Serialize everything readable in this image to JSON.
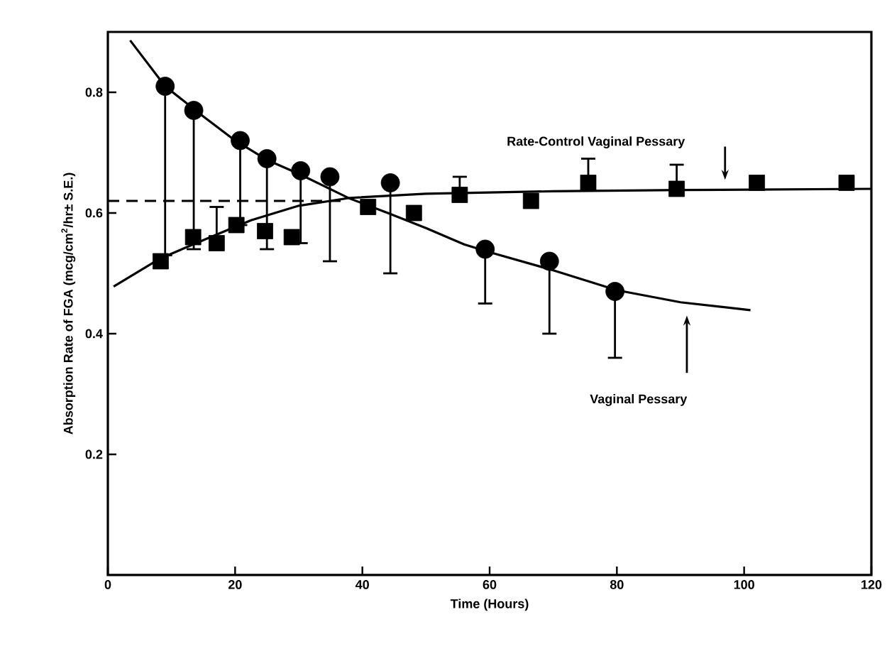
{
  "chart_data": {
    "type": "scatter",
    "xlabel": "Time (Hours)",
    "ylabel": "Absorption Rate of FGA (mcg/cm$^{2}$/hr± S.E.)",
    "xlim": [
      0,
      120
    ],
    "ylim": [
      0,
      0.9
    ],
    "xticks": [
      0,
      20,
      40,
      60,
      80,
      100,
      120
    ],
    "yticks": [
      0.2,
      0.4,
      0.6,
      0.8
    ],
    "series": [
      {
        "color": "#000000",
        "marker": "circle",
        "x": [
          9,
          13.5,
          20.8,
          25,
          30.3,
          34.9,
          44.4,
          59.3,
          69.4,
          79.7
        ],
        "values": [
          0.81,
          0.77,
          0.72,
          0.69,
          0.67,
          0.66,
          0.65,
          0.54,
          0.52,
          0.47
        ],
        "errors": [
          [
            0.53,
            0.81
          ],
          [
            0.54,
            0.77
          ],
          [
            0.58,
            0.72
          ],
          [
            0.54,
            0.69
          ],
          [
            0.55,
            0.67
          ],
          [
            0.52,
            0.66
          ],
          [
            0.5,
            0.65
          ],
          [
            0.45,
            0.54
          ],
          [
            0.4,
            0.52
          ],
          [
            0.36,
            0.47
          ]
        ]
      },
      {
        "color": "#000000",
        "marker": "square",
        "x": [
          8.3,
          13.4,
          17.1,
          20.2,
          24.7,
          28.9,
          40.9,
          48.1,
          55.3,
          66.5,
          75.5,
          89.4,
          102,
          116.1
        ],
        "values": [
          0.52,
          0.56,
          0.55,
          0.58,
          0.57,
          0.56,
          0.61,
          0.6,
          0.63,
          0.62,
          0.65,
          0.64,
          0.65,
          0.65
        ],
        "errors": [
          null,
          null,
          [
            0.55,
            0.61
          ],
          null,
          null,
          null,
          null,
          null,
          [
            0.63,
            0.66
          ],
          null,
          [
            0.65,
            0.69
          ],
          [
            0.64,
            0.68
          ],
          null,
          null
        ]
      },
      {
        "type": "line",
        "color": "#000000",
        "marker": "none",
        "line_style": "solid",
        "x": [
          3.5,
          9,
          15,
          20,
          25,
          30,
          38,
          44,
          50,
          56,
          60,
          70,
          80,
          90,
          101
        ],
        "values": [
          0.886,
          0.81,
          0.76,
          0.72,
          0.688,
          0.665,
          0.624,
          0.6,
          0.575,
          0.548,
          0.535,
          0.505,
          0.472,
          0.452,
          0.439
        ]
      },
      {
        "type": "line",
        "color": "#000000",
        "marker": "none",
        "line_style": "solid",
        "x": [
          0.9,
          8.3,
          15,
          22.5,
          30,
          38,
          50,
          70,
          90,
          120
        ],
        "values": [
          0.478,
          0.525,
          0.555,
          0.588,
          0.612,
          0.625,
          0.632,
          0.636,
          0.638,
          0.64
        ]
      },
      {
        "type": "line",
        "color": "#000000",
        "marker": "none",
        "line_style": "dashed",
        "x": [
          0,
          37
        ],
        "values": [
          0.62,
          0.62
        ]
      }
    ],
    "annotations": [
      "Rate-Control Vaginal Pessary",
      "Vaginal Pessary"
    ]
  }
}
